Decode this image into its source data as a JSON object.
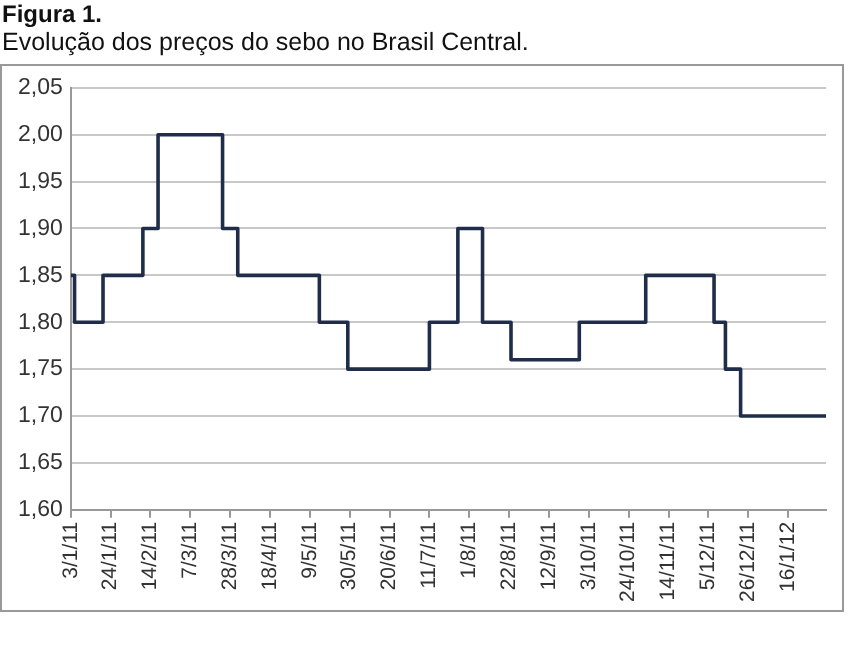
{
  "chart_data": {
    "type": "step",
    "title": "Figura 1.",
    "subtitle": "Evolução dos preços do sebo no Brasil Central.",
    "x": [
      "2011-01-03",
      "2011-01-05",
      "2011-01-20",
      "2011-02-10",
      "2011-02-18",
      "2011-03-24",
      "2011-04-01",
      "2011-05-14",
      "2011-05-29",
      "2011-07-11",
      "2011-07-26",
      "2011-08-08",
      "2011-08-23",
      "2011-09-28",
      "2011-11-02",
      "2011-12-08",
      "2011-12-14",
      "2011-12-22",
      "2012-02-05"
    ],
    "series": [
      {
        "color": "#1f2d4a",
        "values": [
          1.85,
          1.8,
          1.85,
          1.9,
          2.0,
          1.9,
          1.85,
          1.8,
          1.75,
          1.8,
          1.9,
          1.8,
          1.76,
          1.8,
          1.85,
          1.8,
          1.75,
          1.7,
          1.7
        ]
      }
    ],
    "xlim": [
      "2011-01-03",
      "2012-02-05"
    ],
    "xticks": [
      {
        "value": "2011-01-03",
        "label": "3/1/11"
      },
      {
        "value": "2011-01-24",
        "label": "24/1/11"
      },
      {
        "value": "2011-02-14",
        "label": "14/2/11"
      },
      {
        "value": "2011-03-07",
        "label": "7/3/11"
      },
      {
        "value": "2011-03-28",
        "label": "28/3/11"
      },
      {
        "value": "2011-04-18",
        "label": "18/4/11"
      },
      {
        "value": "2011-05-09",
        "label": "9/5/11"
      },
      {
        "value": "2011-05-30",
        "label": "30/5/11"
      },
      {
        "value": "2011-06-20",
        "label": "20/6/11"
      },
      {
        "value": "2011-07-11",
        "label": "11/7/11"
      },
      {
        "value": "2011-08-01",
        "label": "1/8/11"
      },
      {
        "value": "2011-08-22",
        "label": "22/8/11"
      },
      {
        "value": "2011-09-12",
        "label": "12/9/11"
      },
      {
        "value": "2011-10-03",
        "label": "3/10/11"
      },
      {
        "value": "2011-10-24",
        "label": "24/10/11"
      },
      {
        "value": "2011-11-14",
        "label": "14/11/11"
      },
      {
        "value": "2011-12-05",
        "label": "5/12/11"
      },
      {
        "value": "2011-12-26",
        "label": "26/12/11"
      },
      {
        "value": "2012-01-16",
        "label": "16/1/12"
      }
    ],
    "ylim": [
      1.6,
      2.05
    ],
    "yticks": [
      {
        "value": 1.6,
        "label": "1,60"
      },
      {
        "value": 1.65,
        "label": "1,65"
      },
      {
        "value": 1.7,
        "label": "1,70"
      },
      {
        "value": 1.75,
        "label": "1,75"
      },
      {
        "value": 1.8,
        "label": "1,80"
      },
      {
        "value": 1.85,
        "label": "1,85"
      },
      {
        "value": 1.9,
        "label": "1,90"
      },
      {
        "value": 1.95,
        "label": "1,95"
      },
      {
        "value": 2.0,
        "label": "2,00"
      },
      {
        "value": 2.05,
        "label": "2,05"
      }
    ],
    "grid": "y",
    "legend": false
  }
}
